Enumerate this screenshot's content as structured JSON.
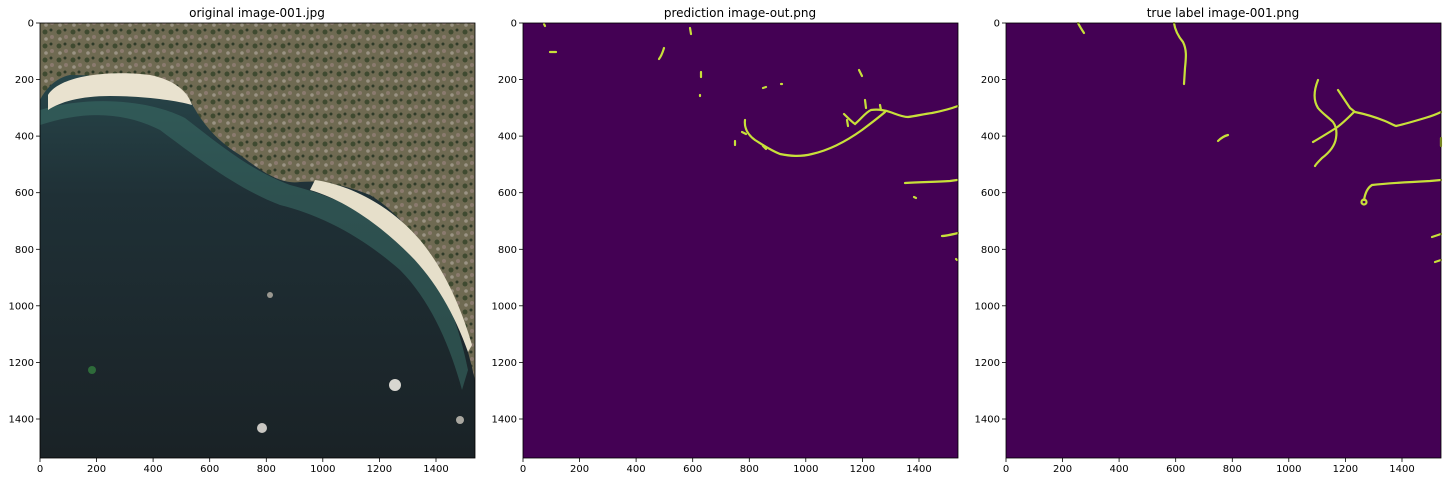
{
  "panels": [
    {
      "title": "original image-001.jpg",
      "kind": "photo",
      "x_ticks": [
        "0",
        "200",
        "400",
        "600",
        "800",
        "1000",
        "1200",
        "1400"
      ],
      "y_ticks": [
        "0",
        "200",
        "400",
        "600",
        "800",
        "1000",
        "1200",
        "1400"
      ]
    },
    {
      "title": "prediction image-out.png",
      "kind": "mask",
      "x_ticks": [
        "0",
        "200",
        "400",
        "600",
        "800",
        "1000",
        "1200",
        "1400"
      ],
      "y_ticks": [
        "0",
        "200",
        "400",
        "600",
        "800",
        "1000",
        "1200",
        "1400"
      ]
    },
    {
      "title": "true label image-001.png",
      "kind": "mask",
      "x_ticks": [
        "0",
        "200",
        "400",
        "600",
        "800",
        "1000",
        "1200",
        "1400"
      ],
      "y_ticks": [
        "0",
        "200",
        "400",
        "600",
        "800",
        "1000",
        "1200",
        "1400"
      ]
    }
  ],
  "colors": {
    "mask_background": "#440154",
    "mask_foreground": "#c8e03a",
    "sea": "#1d2b33",
    "shallow_water": "#2f6b6a",
    "beach": "#e8e0cc",
    "land": "#6b6750"
  }
}
